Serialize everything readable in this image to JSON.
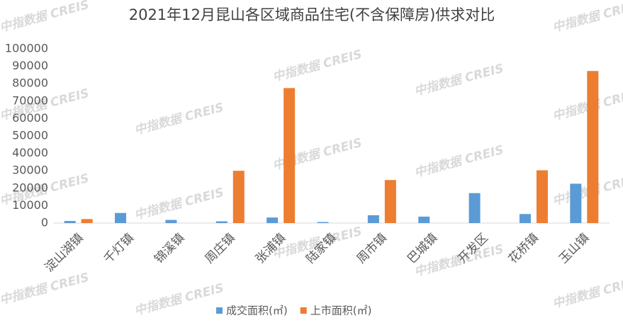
{
  "chart_data": {
    "type": "bar",
    "title": "2021年12月昆山各区域商品住宅(不含保障房)供求对比",
    "watermark": "中指数据 CREIS",
    "categories": [
      "淀山湖镇",
      "千灯镇",
      "锦溪镇",
      "周庄镇",
      "张浦镇",
      "陆家镇",
      "周市镇",
      "巴城镇",
      "开发区",
      "花桥镇",
      "玉山镇"
    ],
    "series": [
      {
        "name": "成交面积(㎡)",
        "color": "#5b9bd5",
        "values": [
          1200,
          5800,
          1800,
          1000,
          3200,
          600,
          4500,
          3700,
          17200,
          5200,
          22600
        ]
      },
      {
        "name": "上市面积(㎡)",
        "color": "#ed7d31",
        "values": [
          2300,
          0,
          0,
          30000,
          77500,
          0,
          24700,
          0,
          0,
          30300,
          87300
        ]
      }
    ],
    "ylim": [
      0,
      100000
    ],
    "yticks": [
      0,
      10000,
      20000,
      30000,
      40000,
      50000,
      60000,
      70000,
      80000,
      90000,
      100000
    ],
    "grid": false,
    "legend": "bottom"
  }
}
